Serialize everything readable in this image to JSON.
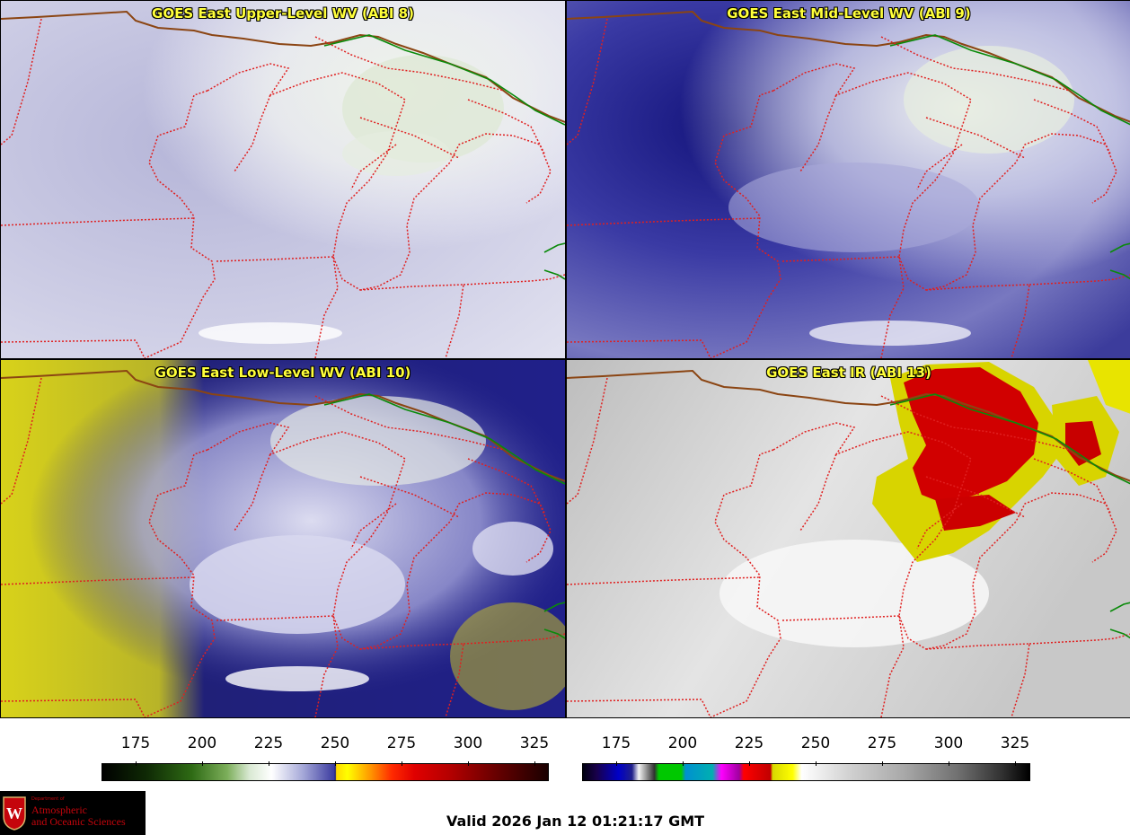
{
  "panels": [
    {
      "title": "GOES East Upper-Level WV (ABI 8)"
    },
    {
      "title": "GOES East Mid-Level WV (ABI 9)"
    },
    {
      "title": "GOES East Low-Level WV (ABI 10)"
    },
    {
      "title": "GOES East IR (ABI 13)"
    }
  ],
  "colorbars": [
    {
      "ticks": [
        "175",
        "200",
        "225",
        "250",
        "275",
        "300",
        "325"
      ]
    },
    {
      "ticks": [
        "175",
        "200",
        "225",
        "250",
        "275",
        "300",
        "325"
      ]
    }
  ],
  "logo": {
    "line1": "Department of",
    "line2": "Atmospheric",
    "line3": "and Oceanic Sciences"
  },
  "valid_time": "Valid 2026 Jan 12 01:21:17 GMT",
  "colors": {
    "title": "#ffff3a",
    "state_lines": "#e02020",
    "border": "#8b4513",
    "green_line": "#0a8a0a"
  }
}
